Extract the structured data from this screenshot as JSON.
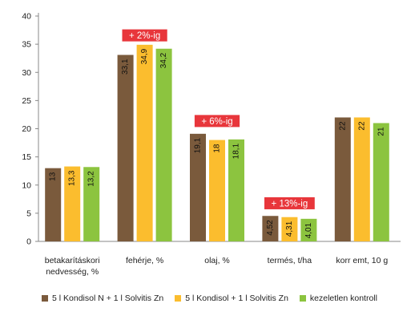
{
  "chart_data": {
    "type": "bar",
    "categories": [
      "betakarításkori nedvesség, %",
      "fehérje, %",
      "olaj, %",
      "termés, t/ha",
      "korr emt, 10 g"
    ],
    "category_label_lines": [
      [
        "betakarításkori",
        "nedvesség, %"
      ],
      [
        "fehérje, %"
      ],
      [
        "olaj, %"
      ],
      [
        "termés, t/ha"
      ],
      [
        "korr emt, 10 g"
      ]
    ],
    "series": [
      {
        "name": "5 l Kondisol N + 1 l Solvitis Zn",
        "color": "#7a5a3c",
        "values": [
          13,
          33.1,
          19.1,
          4.52,
          22
        ],
        "labels": [
          "13",
          "33,1",
          "19,1",
          "4,52",
          "22"
        ]
      },
      {
        "name": "5 l Kondisol + 1 l Solvitis Zn",
        "color": "#fbbd2e",
        "values": [
          13.3,
          34.9,
          18,
          4.31,
          22
        ],
        "labels": [
          "13,3",
          "34,9",
          "18",
          "4,31",
          "22"
        ]
      },
      {
        "name": "kezeletlen kontroll",
        "color": "#8cc43f",
        "values": [
          13.2,
          34.2,
          18.1,
          4.01,
          21
        ],
        "labels": [
          "13,2",
          "34,2",
          "18,1",
          "4,01",
          "21"
        ]
      }
    ],
    "ylim": [
      0,
      40
    ],
    "yticks": [
      0,
      5,
      10,
      15,
      20,
      25,
      30,
      35,
      40
    ],
    "grid": false,
    "legend_position": "bottom",
    "annotations": [
      {
        "text": "+ 2%-ig",
        "category_index": 1,
        "anchor_value": 35.5
      },
      {
        "text": "+ 6%-ig",
        "category_index": 2,
        "anchor_value": 20.3
      },
      {
        "text": "+ 13%-ig",
        "category_index": 3,
        "anchor_value": 5.7
      }
    ],
    "annotation_color": "#e8363b",
    "axis_color": "#888888",
    "text_color": "#222222"
  }
}
